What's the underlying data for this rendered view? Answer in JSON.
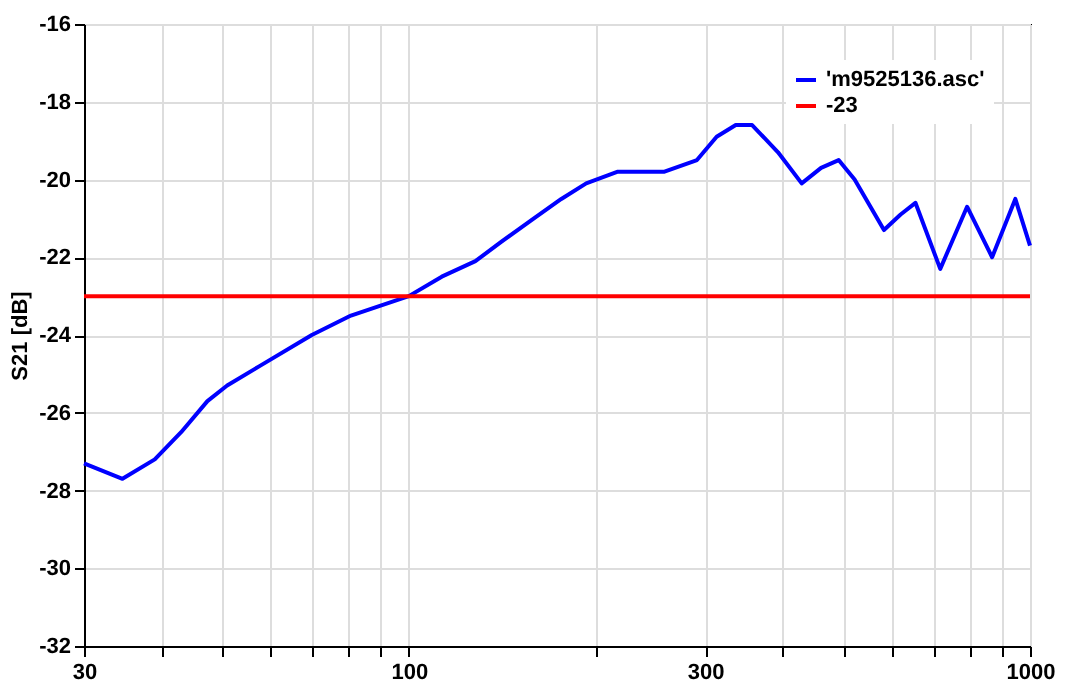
{
  "chart_data": {
    "type": "line",
    "ylabel": "S21 [dB]",
    "series": [
      {
        "name": "'m9525136.asc'",
        "color": "#0000ff",
        "x": [
          30,
          34.6,
          39,
          43,
          47.4,
          51,
          57.5,
          69.8,
          80.7,
          100,
          113,
          128,
          141,
          159,
          176,
          193,
          217,
          258,
          291,
          313,
          336,
          357,
          393,
          429,
          461,
          492,
          522,
          582,
          619,
          654,
          717,
          792,
          869,
          947,
          1000
        ],
        "values": [
          -27.3,
          -27.7,
          -27.2,
          -26.5,
          -25.7,
          -25.3,
          -24.8,
          -24.0,
          -23.5,
          -23.0,
          -22.5,
          -22.1,
          -21.6,
          -21.0,
          -20.5,
          -20.1,
          -19.8,
          -19.8,
          -19.5,
          -18.9,
          -18.6,
          -18.6,
          -19.3,
          -20.1,
          -19.7,
          -19.5,
          -20.0,
          -21.3,
          -20.9,
          -20.6,
          -22.3,
          -20.7,
          -22.0,
          -20.5,
          -21.7
        ]
      },
      {
        "name": "-23",
        "color": "#ff0000",
        "x": [
          30,
          1000
        ],
        "values": [
          -23,
          -23
        ]
      }
    ],
    "log": "x",
    "xlim": [
      30,
      1000
    ],
    "ylim": [
      -32,
      -16
    ],
    "xticks": [
      30,
      {
        "value": 40,
        "label": null
      },
      {
        "value": 50,
        "label": null
      },
      {
        "value": 60,
        "label": null
      },
      {
        "value": 70,
        "label": null
      },
      {
        "value": 80,
        "label": null
      },
      {
        "value": 90,
        "label": null
      },
      100,
      {
        "value": 200,
        "label": null
      },
      300,
      {
        "value": 400,
        "label": null
      },
      {
        "value": 500,
        "label": null
      },
      {
        "value": 600,
        "label": null
      },
      {
        "value": 700,
        "label": null
      },
      {
        "value": 800,
        "label": null
      },
      {
        "value": 900,
        "label": null
      },
      1000
    ],
    "yticks": [
      -32,
      -30,
      -28,
      -26,
      -24,
      -22,
      -20,
      -18,
      -16
    ],
    "grid": true,
    "legend": "top right",
    "line_style": "solid",
    "marker": "none"
  }
}
